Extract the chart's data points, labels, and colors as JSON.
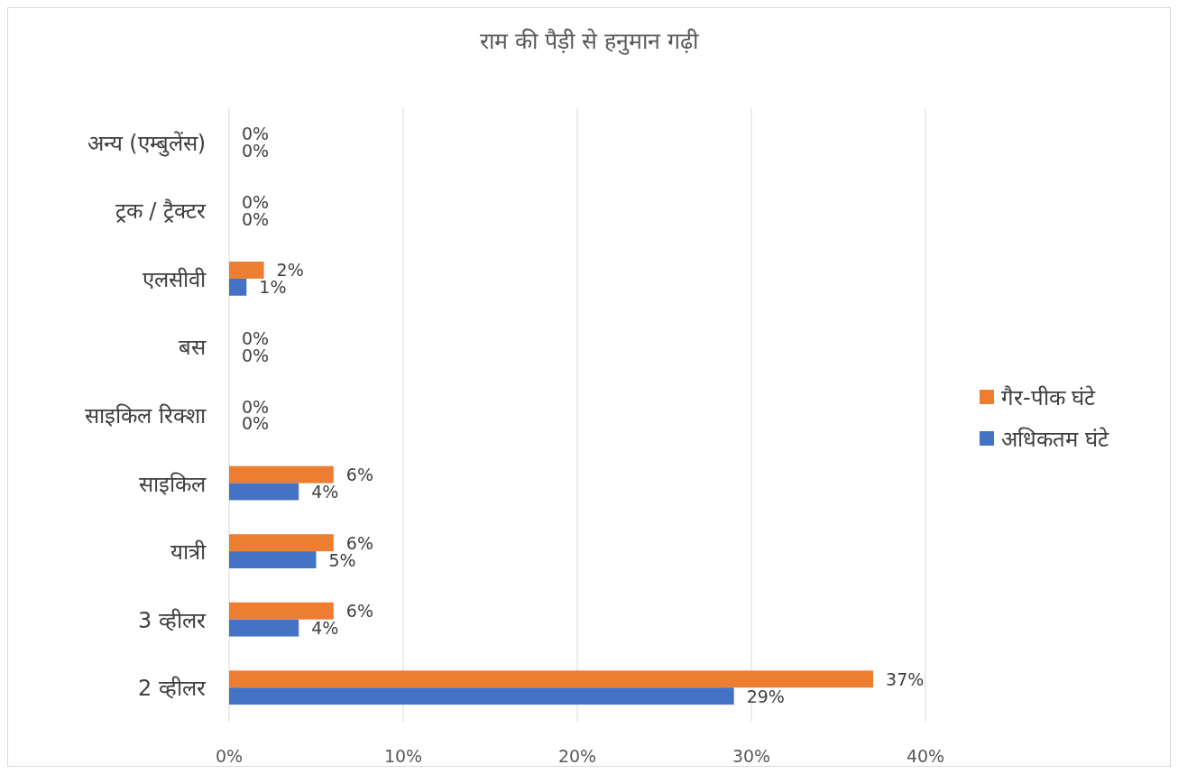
{
  "chart_data": {
    "type": "bar",
    "orientation": "horizontal",
    "title": "राम की पैड़ी से हनुमान गढ़ी",
    "categories": [
      "अन्य (एम्बुलेंस)",
      "ट्रक / ट्रैक्टर",
      "एलसीवी",
      "बस",
      "साइकिल रिक्शा",
      "साइकिल",
      "यात्री",
      "3 व्हीलर",
      "2 व्हीलर"
    ],
    "series": [
      {
        "name": "गैर-पीक घंटे",
        "color": "#ed7d31",
        "values": [
          0,
          0,
          2,
          0,
          0,
          6,
          6,
          6,
          37
        ],
        "value_labels": [
          "0%",
          "0%",
          "2%",
          "0%",
          "0%",
          "6%",
          "6%",
          "6%",
          "37%"
        ]
      },
      {
        "name": "अधिकतम घंटे",
        "color": "#4472c4",
        "values": [
          0,
          0,
          1,
          0,
          0,
          4,
          5,
          4,
          29
        ],
        "value_labels": [
          "0%",
          "0%",
          "1%",
          "0%",
          "0%",
          "4%",
          "5%",
          "4%",
          "29%"
        ]
      }
    ],
    "xlim": [
      0,
      40
    ],
    "xticks": [
      {
        "value": 0,
        "label": "0%"
      },
      {
        "value": 10,
        "label": "10%"
      },
      {
        "value": 20,
        "label": "20%"
      },
      {
        "value": 30,
        "label": "30%"
      },
      {
        "value": 40,
        "label": "40%"
      }
    ],
    "grid": "x",
    "legend": "right"
  }
}
